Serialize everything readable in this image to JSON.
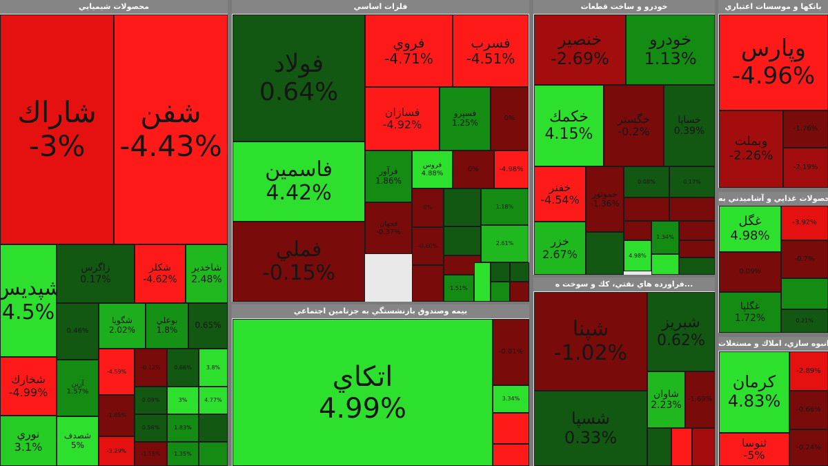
{
  "colors": {
    "dark_green": "#0f4f0f",
    "mid_green": "#138a13",
    "light_green": "#2ee02e",
    "dark_red": "#7a0b0b",
    "mid_red": "#a40d0d",
    "red": "#ff1a1a"
  },
  "chart_data": [
    {
      "type": "heatmap",
      "title": "محصولات شيميايي",
      "tiles": [
        {
          "name": "شاراك",
          "value": "-3%",
          "color": "#e51010"
        },
        {
          "name": "شفن",
          "value": "-4.43%",
          "color": "#ff1a1a"
        },
        {
          "name": "شپديس",
          "value": "4.5%",
          "color": "#2ee02e"
        },
        {
          "name": "زاگرس",
          "value": "0.17%",
          "color": "#125712"
        },
        {
          "name": "شكلر",
          "value": "-4.62%",
          "color": "#ff1a1a"
        },
        {
          "name": "شاخدير",
          "value": "2.48%",
          "color": "#1fb81f"
        },
        {
          "name": "شخارك",
          "value": "-4.99%",
          "color": "#ff1a1a"
        },
        {
          "name": "",
          "value": "0.46%",
          "color": "#125712"
        },
        {
          "name": "شگويا",
          "value": "2.02%",
          "color": "#1cae1c"
        },
        {
          "name": "بوعلي",
          "value": "1.8%",
          "color": "#159215"
        },
        {
          "name": "",
          "value": "0.65%",
          "color": "#125712"
        },
        {
          "name": "نوري",
          "value": "3.1%",
          "color": "#24cc24"
        },
        {
          "name": "آرين",
          "value": "1.57%",
          "color": "#148c14"
        },
        {
          "name": "شصدف",
          "value": "5%",
          "color": "#2ee02e"
        },
        {
          "name": "",
          "value": "-4.59%",
          "color": "#ff1a1a"
        },
        {
          "name": "",
          "value": "-1.85%",
          "color": "#7a0b0b"
        },
        {
          "name": "",
          "value": "-3.29%",
          "color": "#e51010"
        },
        {
          "name": "",
          "value": "-0.12%",
          "color": "#7a0b0b"
        },
        {
          "name": "",
          "value": "0.66%",
          "color": "#125712"
        },
        {
          "name": "",
          "value": "3.8%",
          "color": "#2ee02e"
        },
        {
          "name": "",
          "value": "0.09%",
          "color": "#125712"
        },
        {
          "name": "",
          "value": "3%",
          "color": "#2ee02e"
        },
        {
          "name": "",
          "value": "4.77%",
          "color": "#2ee02e"
        },
        {
          "name": "",
          "value": "0.56%",
          "color": "#125712"
        },
        {
          "name": "",
          "value": "1.83%",
          "color": "#148c14"
        },
        {
          "name": "",
          "value": "-1.15%",
          "color": "#7a0b0b"
        },
        {
          "name": "",
          "value": "1.35%",
          "color": "#148c14"
        }
      ]
    },
    {
      "type": "heatmap",
      "title": "فلزات اساسي",
      "tiles": [
        {
          "name": "فولاد",
          "value": "0.64%",
          "color": "#125712"
        },
        {
          "name": "فروي",
          "value": "-4.71%",
          "color": "#ff1a1a"
        },
        {
          "name": "فسرب",
          "value": "-4.51%",
          "color": "#ff1a1a"
        },
        {
          "name": "فسازان",
          "value": "-4.92%",
          "color": "#ff1a1a"
        },
        {
          "name": "فسپرو",
          "value": "1.25%",
          "color": "#148c14"
        },
        {
          "name": "",
          "value": "0%",
          "color": "#7a0b0b"
        },
        {
          "name": "فاسمين",
          "value": "4.42%",
          "color": "#2ee02e"
        },
        {
          "name": "فرآور",
          "value": "1.86%",
          "color": "#148c14"
        },
        {
          "name": "فروس",
          "value": "4.88%",
          "color": "#2ee02e"
        },
        {
          "name": "",
          "value": "0%",
          "color": "#7a0b0b"
        },
        {
          "name": "",
          "value": "-4.98%",
          "color": "#ff1a1a"
        },
        {
          "name": "فملي",
          "value": "-0.15%",
          "color": "#7a0b0b"
        },
        {
          "name": "فجهان",
          "value": "-0.37%",
          "color": "#7a0b0b"
        },
        {
          "name": "",
          "value": "0%",
          "color": "#7a0b0b"
        },
        {
          "name": "",
          "value": "-0.60%",
          "color": "#7a0b0b"
        },
        {
          "name": "",
          "value": "1.18%",
          "color": "#148c14"
        },
        {
          "name": "",
          "value": "2.61%",
          "color": "#1fb81f"
        },
        {
          "name": "",
          "value": "1.51%",
          "color": "#148c14"
        }
      ]
    },
    {
      "type": "heatmap",
      "title": "خودرو و ساخت قطعات",
      "tiles": [
        {
          "name": "خنصير",
          "value": "-2.69%",
          "color": "#a40d0d"
        },
        {
          "name": "خودرو",
          "value": "1.13%",
          "color": "#148c14"
        },
        {
          "name": "خكمك",
          "value": "4.15%",
          "color": "#2ee02e"
        },
        {
          "name": "خگستر",
          "value": "-0.2%",
          "color": "#7a0b0b"
        },
        {
          "name": "خساپا",
          "value": "0.39%",
          "color": "#125712"
        },
        {
          "name": "خفنر",
          "value": "-4.54%",
          "color": "#ff1a1a"
        },
        {
          "name": "خموتور",
          "value": "-1.36%",
          "color": "#7a0b0b"
        },
        {
          "name": "",
          "value": "0.08%",
          "color": "#125712"
        },
        {
          "name": "",
          "value": "0.17%",
          "color": "#125712"
        },
        {
          "name": "خزر",
          "value": "2.67%",
          "color": "#1fb81f"
        },
        {
          "name": "",
          "value": "4.98%",
          "color": "#2ee02e"
        },
        {
          "name": "",
          "value": "1.34%",
          "color": "#148c14"
        }
      ]
    },
    {
      "type": "heatmap",
      "title": "بانكها و موسسات اعتباري",
      "tiles": [
        {
          "name": "وپارس",
          "value": "-4.96%",
          "color": "#ff1a1a"
        },
        {
          "name": "وبملت",
          "value": "-2.26%",
          "color": "#a40d0d"
        },
        {
          "name": "",
          "value": "-1.76%",
          "color": "#7a0b0b"
        },
        {
          "name": "",
          "value": "-2.19%",
          "color": "#a40d0d"
        }
      ]
    },
    {
      "type": "heatmap",
      "title": "محصولات غذايي و آشاميدني به",
      "tiles": [
        {
          "name": "غگل",
          "value": "4.98%",
          "color": "#2ee02e"
        },
        {
          "name": "",
          "value": "-3.92%",
          "color": "#e51010"
        },
        {
          "name": "",
          "value": "-0.7%",
          "color": "#7a0b0b"
        },
        {
          "name": "",
          "value": "0.09%",
          "color": "#7a0b0b"
        },
        {
          "name": "غگلپا",
          "value": "1.72%",
          "color": "#148c14"
        },
        {
          "name": "",
          "value": "0.21%",
          "color": "#125712"
        }
      ]
    },
    {
      "type": "heatmap",
      "title": "انبوه سازي، املاك و مستغلات",
      "tiles": [
        {
          "name": "كرمان",
          "value": "4.83%",
          "color": "#2ee02e"
        },
        {
          "name": "",
          "value": "-2.89%",
          "color": "#e51010"
        },
        {
          "name": "",
          "value": "-0.66%",
          "color": "#7a0b0b"
        },
        {
          "name": "ثنوسا",
          "value": "-5%",
          "color": "#ff1a1a"
        },
        {
          "name": "",
          "value": "-0.24%",
          "color": "#7a0b0b"
        }
      ]
    },
    {
      "type": "heatmap",
      "title": "بيمه وصندوق بازنشستگي به جزتامين اجتماعي",
      "tiles": [
        {
          "name": "اتكاي",
          "value": "4.99%",
          "color": "#2ee02e"
        },
        {
          "name": "",
          "value": "-0.81%",
          "color": "#7a0b0b"
        },
        {
          "name": "",
          "value": "3.34%",
          "color": "#2ee02e"
        }
      ]
    },
    {
      "type": "heatmap",
      "title": "فراورده هاي نفتي، كك و سوخت ه...",
      "tiles": [
        {
          "name": "شپنا",
          "value": "-1.02%",
          "color": "#7a0b0b"
        },
        {
          "name": "شبريز",
          "value": "0.62%",
          "color": "#125712"
        },
        {
          "name": "شاوان",
          "value": "2.23%",
          "color": "#1fb81f"
        },
        {
          "name": "",
          "value": "-1.69%",
          "color": "#7a0b0b"
        },
        {
          "name": "شسپا",
          "value": "0.33%",
          "color": "#125712"
        }
      ]
    }
  ]
}
